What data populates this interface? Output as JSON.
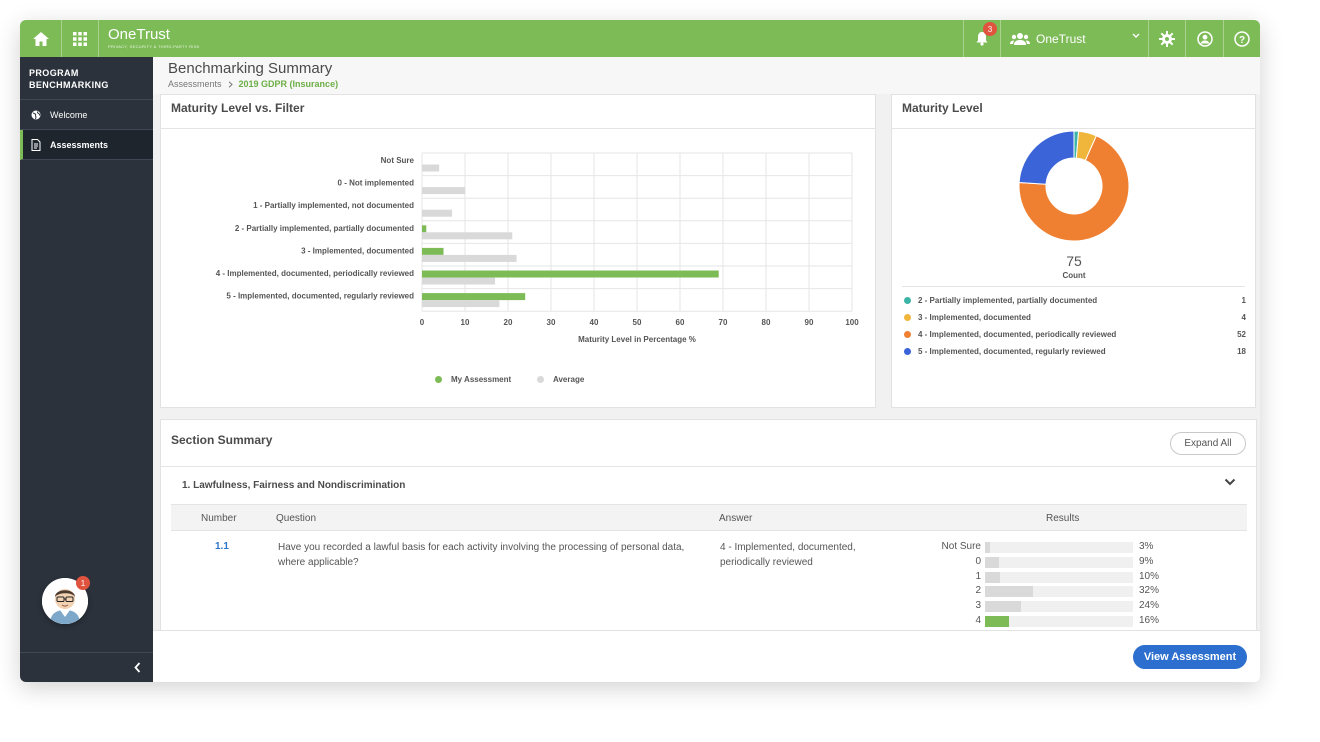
{
  "app": {
    "name": "OneTrust",
    "tagline": "PRIVACY, SECURITY & THIRD-PARTY RISK"
  },
  "topbar": {
    "notifications_count": "3",
    "org_label": "OneTrust"
  },
  "sidebar": {
    "title_line1": "PROGRAM",
    "title_line2": "BENCHMARKING",
    "items": [
      {
        "label": "Welcome",
        "icon": "globe-icon",
        "active": false
      },
      {
        "label": "Assessments",
        "icon": "document-icon",
        "active": true
      }
    ],
    "avatar_badge": "1"
  },
  "header": {
    "title": "Benchmarking Summary",
    "breadcrumb_root": "Assessments",
    "breadcrumb_current": "2019 GDPR (Insurance)"
  },
  "bar_card": {
    "title": "Maturity Level vs. Filter"
  },
  "donut_card": {
    "title": "Maturity Level",
    "total": "75",
    "total_label": "Count",
    "rows": [
      {
        "label": "2 - Partially implemented, partially documented",
        "value": "1",
        "color": "#3cb4a8"
      },
      {
        "label": "3 - Implemented, documented",
        "value": "4",
        "color": "#f0b63c"
      },
      {
        "label": "4 - Implemented, documented, periodically reviewed",
        "value": "52",
        "color": "#ef8032"
      },
      {
        "label": "5 - Implemented, documented, regularly reviewed",
        "value": "18",
        "color": "#3a64d8"
      }
    ]
  },
  "section": {
    "title": "Section Summary",
    "expand_label": "Expand All",
    "group_name": "1. Lawfulness, Fairness and Nondiscrimination",
    "columns": {
      "number": "Number",
      "question": "Question",
      "answer": "Answer",
      "results": "Results"
    },
    "question": {
      "number": "1.1",
      "text": "Have you recorded a lawful basis for each activity involving the processing of personal data, where applicable?",
      "answer": "4 - Implemented, documented, periodically reviewed"
    },
    "results": [
      {
        "label": "Not Sure",
        "pct_text": "3%",
        "value": 3,
        "mine": false
      },
      {
        "label": "0",
        "pct_text": "9%",
        "value": 9,
        "mine": false
      },
      {
        "label": "1",
        "pct_text": "10%",
        "value": 10,
        "mine": false
      },
      {
        "label": "2",
        "pct_text": "32%",
        "value": 32,
        "mine": false
      },
      {
        "label": "3",
        "pct_text": "24%",
        "value": 24,
        "mine": false
      },
      {
        "label": "4",
        "pct_text": "16%",
        "value": 16,
        "mine": true
      }
    ]
  },
  "footer": {
    "view_label": "View Assessment"
  },
  "colors": {
    "brand_green": "#7dbb57",
    "average_gray": "#d9d9d9",
    "primary_blue": "#2c6fce"
  },
  "chart_data": [
    {
      "type": "bar",
      "orientation": "horizontal",
      "categories": [
        "Not Sure",
        "0 - Not implemented",
        "1 - Partially implemented, not documented",
        "2 - Partially implemented, partially documented",
        "3 - Implemented, documented",
        "4 - Implemented, documented, periodically reviewed",
        "5 - Implemented, documented, regularly reviewed"
      ],
      "series": [
        {
          "name": "My Assessment",
          "color": "#7dbb57",
          "values": [
            0,
            0,
            0,
            1,
            5,
            69,
            24
          ]
        },
        {
          "name": "Average",
          "color": "#d9d9d9",
          "values": [
            4,
            10,
            7,
            21,
            22,
            17,
            18
          ]
        }
      ],
      "xlabel": "Maturity Level in Percentage %",
      "xlim": [
        0,
        100
      ],
      "xticks": [
        0,
        10,
        20,
        30,
        40,
        50,
        60,
        70,
        80,
        90,
        100
      ],
      "grid": true,
      "legend": "bottom"
    },
    {
      "type": "pie",
      "donut": true,
      "labels": [
        "2 - Partially implemented, partially documented",
        "3 - Implemented, documented",
        "4 - Implemented, documented, periodically reviewed",
        "5 - Implemented, documented, regularly reviewed"
      ],
      "values": [
        1,
        4,
        52,
        18
      ],
      "colors": [
        "#3cb4a8",
        "#f0b63c",
        "#ef8032",
        "#3a64d8"
      ],
      "center_value": "75",
      "center_label": "Count",
      "legend": "bottom"
    }
  ]
}
